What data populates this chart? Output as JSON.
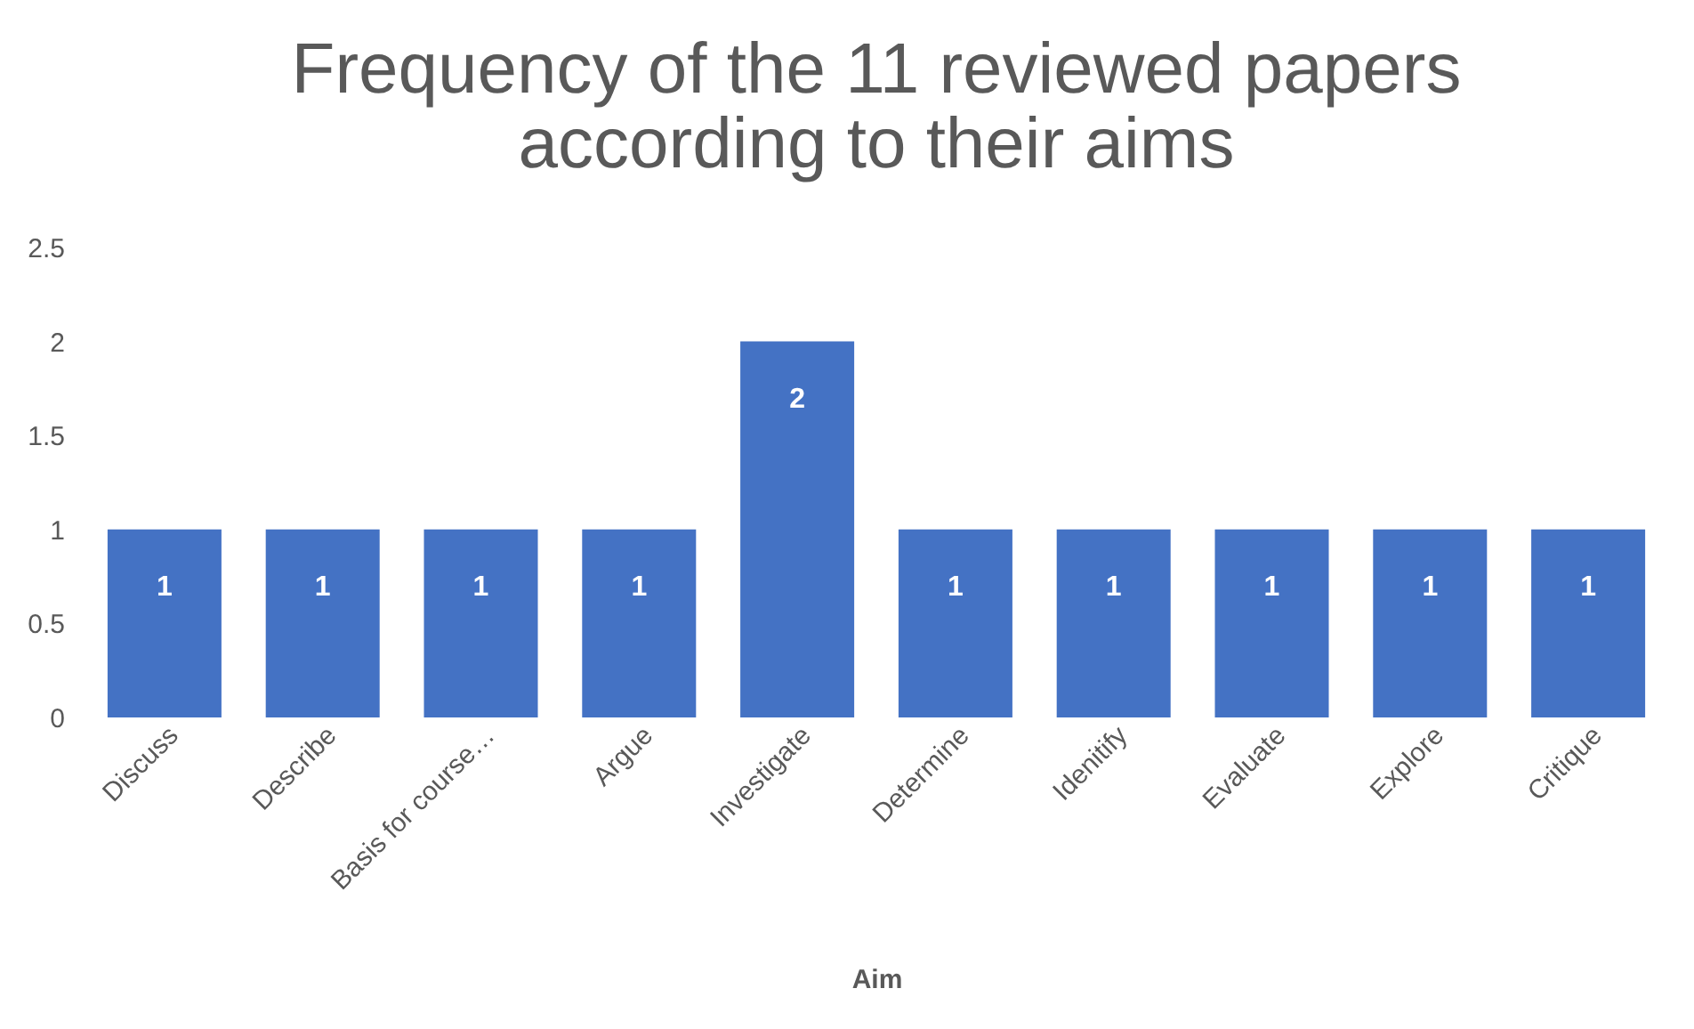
{
  "chart_data": {
    "type": "bar",
    "title": [
      "Frequency of the 11 reviewed papers",
      "according to their aims"
    ],
    "xlabel": "Aim",
    "categories": [
      "Discuss",
      "Describe",
      "Basis for course…",
      "Argue",
      "Investigate",
      "Determine",
      "Idenitify",
      "Evaluate",
      "Explore",
      "Critique"
    ],
    "values": [
      1,
      1,
      1,
      1,
      2,
      1,
      1,
      1,
      1,
      1
    ],
    "color": "#4472c4",
    "ylim": [
      0,
      2.5
    ],
    "yticks": [
      0,
      0.5,
      1,
      1.5,
      2,
      2.5
    ],
    "grid": false,
    "data_labels": true
  }
}
